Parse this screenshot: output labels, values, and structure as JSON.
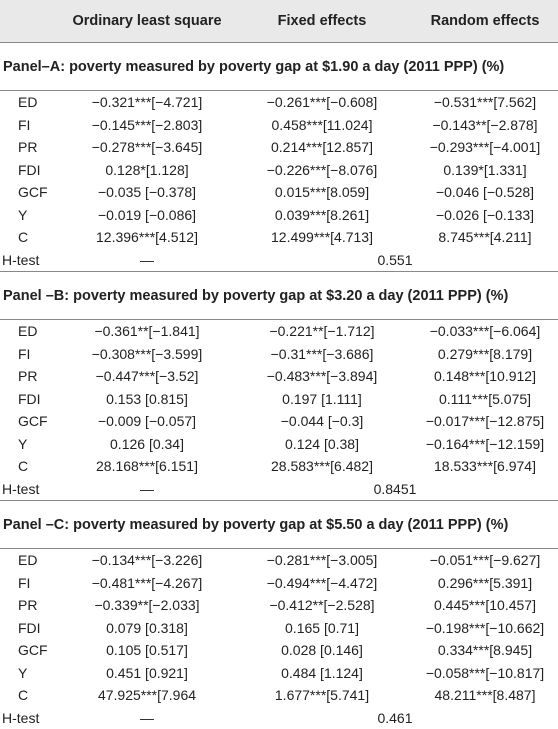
{
  "header": {
    "columns": [
      "",
      "Ordinary least square",
      "Fixed effects",
      "Random effects"
    ]
  },
  "panels": [
    {
      "title": "Panel–A: poverty measured by poverty gap at $1.90 a day (2011 PPP) (%)",
      "rows": [
        [
          "ED",
          "−0.321***[−4.721]",
          "−0.261***[−0.608]",
          "−0.531***[7.562]"
        ],
        [
          "FI",
          "−0.145***[−2.803]",
          "0.458***[11.024]",
          "−0.143**[−2.878]"
        ],
        [
          "PR",
          "−0.278***[−3.645]",
          "0.214***[12.857]",
          "−0.293***[−4.001]"
        ],
        [
          "FDI",
          "0.128*[1.128]",
          "−0.226***[−8.076]",
          "0.139*[1.331]"
        ],
        [
          "GCF",
          "−0.035 [−0.378]",
          "0.015***[8.059]",
          "−0.046 [−0.528]"
        ],
        [
          "Y",
          "−0.019 [−0.086]",
          "0.039***[8.261]",
          "−0.026 [−0.133]"
        ],
        [
          "C",
          "12.396***[4.512]",
          "12.499***[4.713]",
          "8.745***[4.211]"
        ]
      ],
      "htest": [
        "H-test",
        "—",
        "0.551"
      ]
    },
    {
      "title": "Panel –B: poverty measured by poverty gap at $3.20 a day (2011 PPP) (%)",
      "rows": [
        [
          "ED",
          "−0.361**[−1.841]",
          "−0.221**[−1.712]",
          "−0.033***[−6.064]"
        ],
        [
          "FI",
          "−0.308***[−3.599]",
          "−0.31***[−3.686]",
          "0.279***[8.179]"
        ],
        [
          "PR",
          "−0.447***[−3.52]",
          "−0.483***[−3.894]",
          "0.148***[10.912]"
        ],
        [
          "FDI",
          "0.153 [0.815]",
          "0.197 [1.111]",
          "0.111***[5.075]"
        ],
        [
          "GCF",
          "−0.009 [−0.057]",
          "−0.044 [−0.3]",
          "−0.017***[−12.875]"
        ],
        [
          "Y",
          "0.126 [0.34]",
          "0.124 [0.38]",
          "−0.164***[−12.159]"
        ],
        [
          "C",
          "28.168***[6.151]",
          "28.583***[6.482]",
          "18.533***[6.974]"
        ]
      ],
      "htest": [
        "H-test",
        "—",
        "0.8451"
      ]
    },
    {
      "title": "Panel –C: poverty measured by poverty gap at $5.50 a day (2011 PPP) (%)",
      "rows": [
        [
          "ED",
          "−0.134***[−3.226]",
          "−0.281***[−3.005]",
          "−0.051***[−9.627]"
        ],
        [
          "FI",
          "−0.481***[−4.267]",
          "−0.494***[−4.472]",
          "0.296***[5.391]"
        ],
        [
          "PR",
          "−0.339**[−2.033]",
          "−0.412**[−2.528]",
          "0.445***[10.457]"
        ],
        [
          "FDI",
          "0.079 [0.318]",
          "0.165 [0.71]",
          "−0.198***[−10.662]"
        ],
        [
          "GCF",
          "0.105 [0.517]",
          "0.028 [0.146]",
          "0.334***[8.945]"
        ],
        [
          "Y",
          "0.451 [0.921]",
          "0.484 [1.124]",
          "−0.058***[−10.817]"
        ],
        [
          "C",
          "47.925***[7.964",
          "1.677***[5.741]",
          "48.211***[8.487]"
        ]
      ],
      "htest": [
        "H-test",
        "—",
        "0.461"
      ]
    }
  ]
}
